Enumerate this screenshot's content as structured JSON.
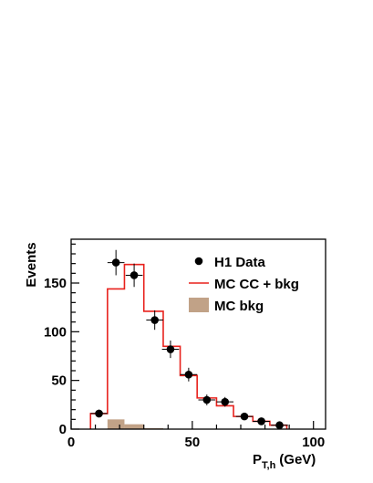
{
  "chart_data": {
    "type": "histogram",
    "xlabel": "P",
    "xlabel_sub": "T,h",
    "xlabel_unit": "(GeV)",
    "ylabel": "Events",
    "xlim": [
      0,
      105
    ],
    "ylim": [
      0,
      195
    ],
    "xticks": [
      0,
      50,
      100
    ],
    "yticks": [
      0,
      50,
      100,
      150
    ],
    "legend": {
      "position": "top-right",
      "entries": [
        "H1 Data",
        "MC CC + bkg",
        "MC bkg"
      ]
    },
    "series": [
      {
        "name": "H1 Data",
        "kind": "points",
        "color": "#000000",
        "x": [
          11.5,
          18.5,
          26,
          34.5,
          41,
          48.5,
          56,
          63.5,
          71.5,
          78.5,
          86
        ],
        "y": [
          16,
          171,
          158,
          112,
          82,
          56,
          30,
          28,
          13,
          8,
          4
        ],
        "yerr": [
          4,
          13,
          12,
          10,
          9,
          7,
          5.5,
          5,
          3.5,
          3,
          2
        ],
        "xerr": [
          3.5,
          3.5,
          3.5,
          3.5,
          3.5,
          3.5,
          3.5,
          3.5,
          3.5,
          3.5,
          3.5
        ]
      },
      {
        "name": "MC CC + bkg",
        "kind": "step",
        "color": "#e8211c",
        "edges": [
          8,
          15,
          22,
          30,
          38,
          45,
          52,
          60,
          67,
          75,
          82,
          89
        ],
        "values": [
          16,
          144,
          169,
          121,
          85,
          55,
          32,
          24,
          13,
          8,
          4
        ]
      },
      {
        "name": "MC bkg",
        "kind": "filled-step",
        "color": "#c1a287",
        "edges": [
          15,
          22,
          30,
          38
        ],
        "values": [
          10,
          5,
          1
        ]
      }
    ]
  }
}
